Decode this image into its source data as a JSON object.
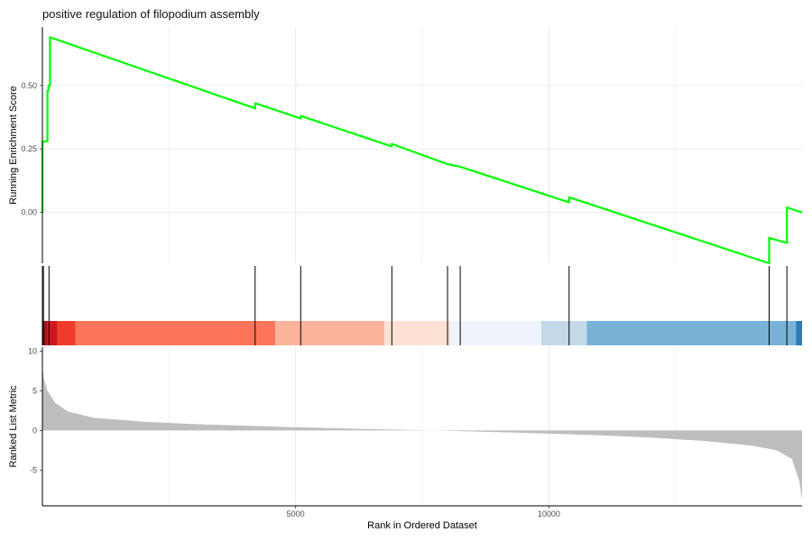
{
  "chart_data": {
    "type": "line",
    "title": "positive regulation of filopodium assembly",
    "xlabel": "Rank in Ordered Dataset",
    "xlim": [
      0,
      15000
    ],
    "x_ticks": [
      5000,
      10000
    ],
    "x_tick_labels": [
      "5000",
      "10000"
    ],
    "grid": true,
    "colors": {
      "es_line": "#00ff00",
      "metric_fill": "#bebebe",
      "hit_line": "#000000"
    },
    "panels": [
      {
        "name": "running-enrichment-score",
        "ylabel": "Running Enrichment Score",
        "ylim": [
          -0.2,
          0.73
        ],
        "y_ticks": [
          0.0,
          0.25,
          0.5
        ],
        "y_tick_labels": [
          "0.00",
          "0.25",
          "0.50"
        ],
        "series": [
          {
            "x": [
              0,
              1,
              1,
              100,
              100,
              120,
              120,
              150,
              150,
              4200,
              4200,
              5100,
              5100,
              6900,
              6900,
              8000,
              8000,
              8250,
              8250,
              10400,
              10400,
              14350,
              14350,
              14700,
              14700,
              15000
            ],
            "y": [
              0.0,
              0.0,
              0.28,
              0.28,
              0.48,
              0.48,
              0.5,
              0.5,
              0.69,
              0.41,
              0.43,
              0.37,
              0.38,
              0.26,
              0.27,
              0.19,
              0.19,
              0.18,
              0.18,
              0.04,
              0.06,
              -0.2,
              -0.1,
              -0.12,
              0.02,
              0.0
            ]
          }
        ]
      },
      {
        "name": "gene-hits",
        "hits": [
          20,
          130,
          4200,
          5100,
          6900,
          8000,
          8250,
          10400,
          14350,
          14700
        ],
        "color_band": [
          {
            "from": 0,
            "to": 100,
            "color": "#a50f15"
          },
          {
            "from": 100,
            "to": 300,
            "color": "#cb181d"
          },
          {
            "from": 300,
            "to": 650,
            "color": "#ef3b2c"
          },
          {
            "from": 650,
            "to": 4600,
            "color": "#fc7459"
          },
          {
            "from": 4600,
            "to": 6750,
            "color": "#fcb49b"
          },
          {
            "from": 6750,
            "to": 8050,
            "color": "#fde1d5"
          },
          {
            "from": 8050,
            "to": 9850,
            "color": "#eff3fb"
          },
          {
            "from": 9850,
            "to": 10750,
            "color": "#c3d9e8"
          },
          {
            "from": 10750,
            "to": 14880,
            "color": "#78b3d7"
          },
          {
            "from": 14880,
            "to": 15000,
            "color": "#2b7bba"
          }
        ]
      },
      {
        "name": "ranked-list-metric",
        "ylabel": "Ranked List Metric",
        "ylim": [
          -9.5,
          10.5
        ],
        "y_ticks": [
          -5,
          0,
          5,
          10
        ],
        "y_tick_labels": [
          "-5",
          "0",
          "5",
          "10"
        ],
        "series": [
          {
            "x": [
              0,
              30,
              100,
              250,
              500,
              1000,
              2000,
              3000,
              4000,
              5000,
              6000,
              7000,
              8000,
              9000,
              10000,
              11000,
              12000,
              13000,
              14000,
              14500,
              14800,
              14950,
              15000
            ],
            "y": [
              8.0,
              6.5,
              5.0,
              3.5,
              2.4,
              1.6,
              1.1,
              0.8,
              0.6,
              0.4,
              0.25,
              0.1,
              -0.05,
              -0.2,
              -0.4,
              -0.6,
              -0.9,
              -1.3,
              -1.9,
              -2.5,
              -3.6,
              -6.5,
              -8.8
            ]
          }
        ]
      }
    ]
  }
}
